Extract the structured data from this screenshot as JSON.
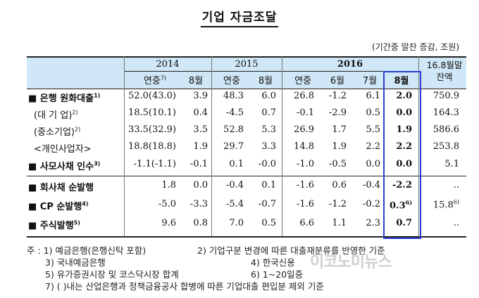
{
  "title": "기업 자금조달",
  "unit": "(기간중 말잔 증감, 조원)",
  "years": [
    "2014",
    "2015",
    "2016"
  ],
  "subheaders": [
    "연중",
    "8월",
    "연중",
    "8월",
    "연중",
    "6월",
    "7월",
    "8월"
  ],
  "last_col_header": [
    "16.8월말",
    "잔액"
  ],
  "rows": [
    {
      "label": "■ 은행 원화대출",
      "sup": "1)",
      "values": [
        "52.0(43.0)",
        "3.9",
        "48.3",
        "6.0",
        "26.8",
        "-1.2",
        "6.1",
        "2.0",
        "750.9"
      ]
    },
    {
      "label": "(대 기 업)",
      "sup": "2)",
      "values": [
        "18.5(10.1)",
        "0.4",
        "-4.5",
        "0.7",
        "-0.1",
        "-2.9",
        "0.5",
        "0.0",
        "164.3"
      ]
    },
    {
      "label": "(중소기업)",
      "sup": "2)",
      "values": [
        "33.5(32.9)",
        "3.5",
        "52.8",
        "5.3",
        "26.9",
        "1.7",
        "5.5",
        "1.9",
        "586.6"
      ]
    },
    {
      "label": "<개인사업자>",
      "sup": "",
      "values": [
        "18.8(18.8)",
        "1.9",
        "29.7",
        "3.3",
        "14.8",
        "1.9",
        "2.2",
        "2.2",
        "253.8"
      ]
    },
    {
      "label": "■ 사모사채 인수",
      "sup": "3)",
      "values": [
        "-1.1(-1.1)",
        "-0.1",
        "0.1",
        "-0.0",
        "-1.0",
        "-0.5",
        "0.0",
        "0.0",
        "5.1"
      ]
    },
    {
      "label": "■ 회사채 순발행",
      "sup": "",
      "values": [
        "1.8",
        "0.0",
        "-0.4",
        "0.1",
        "-1.6",
        "0.6",
        "-0.4",
        "-2.2",
        ".."
      ]
    },
    {
      "label": "■ CP 순발행",
      "sup": "4)",
      "values": [
        "-5.0",
        "-3.3",
        "-5.4",
        "-0.7",
        "-1.6",
        "-1.2",
        "-0.2",
        "0.3",
        "15.8"
      ],
      "sups": {
        "7": "6)",
        "8": "6)"
      }
    },
    {
      "label": "■ 주식발행",
      "sup": "5)",
      "values": [
        "9.6",
        "0.8",
        "7.0",
        "0.5",
        "6.6",
        "1.1",
        "2.3",
        "0.7",
        ".."
      ]
    }
  ],
  "notes": {
    "n1": "주 : 1) 예금은행(은행신탁 포함)",
    "n2": "2) 기업구분 변경에 따른 대출재분류를 반영한 기준",
    "n3": "3) 국내예금은행",
    "n4": "4) 한국신용",
    "n5": "5) 유가증권시장 및 코스닥시장 합계",
    "n6": "6) 1~20일중",
    "n7": "7) ( )내는 산업은행과 정책금융공사 합병에 따른 기업대출 편입분 제외 기준"
  },
  "watermark": "이코노미뉴스"
}
